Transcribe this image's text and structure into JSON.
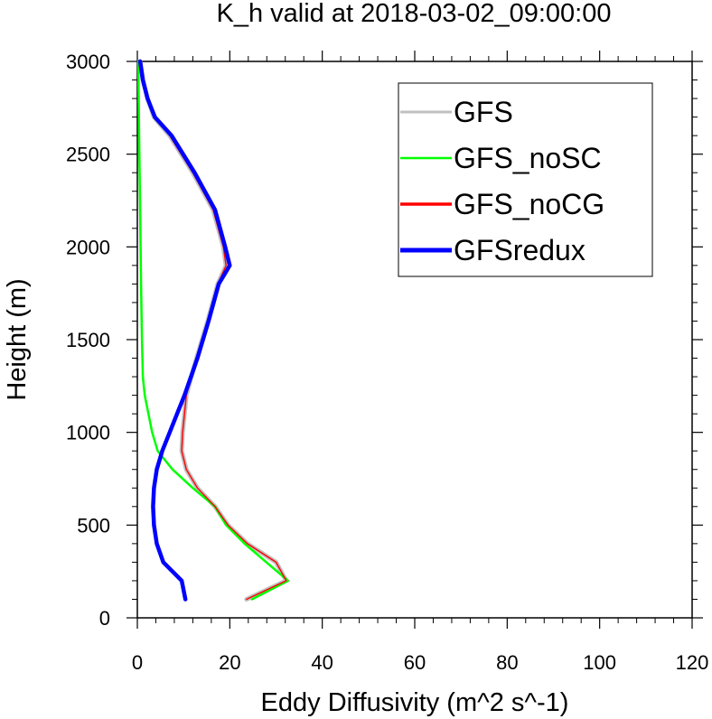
{
  "chart_data": {
    "type": "line",
    "title": "K_h valid at 2018-03-02_09:00:00",
    "xlabel": "Eddy Diffusivity (m^2 s^-1)",
    "ylabel": "Height (m)",
    "xlim": [
      0,
      120
    ],
    "ylim": [
      0,
      3000
    ],
    "xticks": [
      0,
      20,
      40,
      60,
      80,
      100,
      120
    ],
    "yticks": [
      0,
      500,
      1000,
      1500,
      2000,
      2500,
      3000
    ],
    "xtick_labels": [
      "0",
      "20",
      "40",
      "60",
      "80",
      "100",
      "120"
    ],
    "ytick_labels": [
      "0",
      "500",
      "1000",
      "1500",
      "2000",
      "2500",
      "3000"
    ],
    "grid": false,
    "legend_position": "top-right",
    "series": [
      {
        "name": "GFS",
        "color": "#c0c0c0",
        "points": [
          [
            23.6,
            100
          ],
          [
            32.2,
            200
          ],
          [
            30,
            300
          ],
          [
            23.8,
            400
          ],
          [
            19.6,
            500
          ],
          [
            16.8,
            600
          ],
          [
            13,
            700
          ],
          [
            10.6,
            800
          ],
          [
            9.6,
            900
          ],
          [
            9.8,
            1000
          ],
          [
            10.2,
            1100
          ],
          [
            10.6,
            1200
          ],
          [
            12.8,
            1400
          ],
          [
            15.2,
            1600
          ],
          [
            17.4,
            1800
          ],
          [
            19.2,
            1900
          ],
          [
            18.6,
            2000
          ],
          [
            16.4,
            2200
          ],
          [
            12,
            2400
          ],
          [
            7,
            2600
          ],
          [
            3.6,
            2700
          ],
          [
            2.2,
            2800
          ],
          [
            1.2,
            2900
          ],
          [
            0.6,
            3000
          ]
        ]
      },
      {
        "name": "GFS_noSC",
        "color": "#00ff00",
        "points": [
          [
            24.8,
            100
          ],
          [
            32.6,
            200
          ],
          [
            23.2,
            400
          ],
          [
            19.2,
            500
          ],
          [
            16.8,
            600
          ],
          [
            12,
            700
          ],
          [
            7.6,
            800
          ],
          [
            4.4,
            900
          ],
          [
            3.2,
            1000
          ],
          [
            1.6,
            1200
          ],
          [
            1.2,
            1300
          ],
          [
            1,
            1500
          ],
          [
            0.8,
            1800
          ],
          [
            0.6,
            2200
          ],
          [
            0.4,
            2600
          ],
          [
            0.2,
            3000
          ]
        ]
      },
      {
        "name": "GFS_noCG",
        "color": "#ff0000",
        "points": [
          [
            23.6,
            100
          ],
          [
            32.2,
            200
          ],
          [
            30,
            300
          ],
          [
            23.8,
            400
          ],
          [
            19.6,
            500
          ],
          [
            16.8,
            600
          ],
          [
            13,
            700
          ],
          [
            10.6,
            800
          ],
          [
            9.6,
            900
          ],
          [
            9.8,
            1000
          ],
          [
            10.2,
            1100
          ],
          [
            10.6,
            1200
          ],
          [
            12.8,
            1400
          ],
          [
            15.2,
            1600
          ],
          [
            17.4,
            1800
          ],
          [
            19.2,
            1900
          ],
          [
            18.6,
            2000
          ],
          [
            16.4,
            2200
          ],
          [
            12,
            2400
          ],
          [
            7,
            2600
          ],
          [
            3.6,
            2700
          ],
          [
            2.2,
            2800
          ],
          [
            1.2,
            2900
          ],
          [
            0.6,
            3000
          ]
        ]
      },
      {
        "name": "GFSredux",
        "color": "#0000ff",
        "points": [
          [
            10.4,
            100
          ],
          [
            9.6,
            200
          ],
          [
            5.6,
            300
          ],
          [
            4.2,
            400
          ],
          [
            3.6,
            500
          ],
          [
            3.4,
            600
          ],
          [
            3.6,
            700
          ],
          [
            4.2,
            800
          ],
          [
            5.4,
            900
          ],
          [
            7,
            1000
          ],
          [
            8.6,
            1100
          ],
          [
            10.2,
            1200
          ],
          [
            13,
            1400
          ],
          [
            15.4,
            1600
          ],
          [
            17.6,
            1800
          ],
          [
            20,
            1900
          ],
          [
            19,
            2000
          ],
          [
            16.8,
            2200
          ],
          [
            12.4,
            2400
          ],
          [
            7.4,
            2600
          ],
          [
            3.8,
            2700
          ],
          [
            2.2,
            2800
          ],
          [
            1.2,
            2900
          ],
          [
            0.6,
            3000
          ]
        ]
      }
    ]
  }
}
